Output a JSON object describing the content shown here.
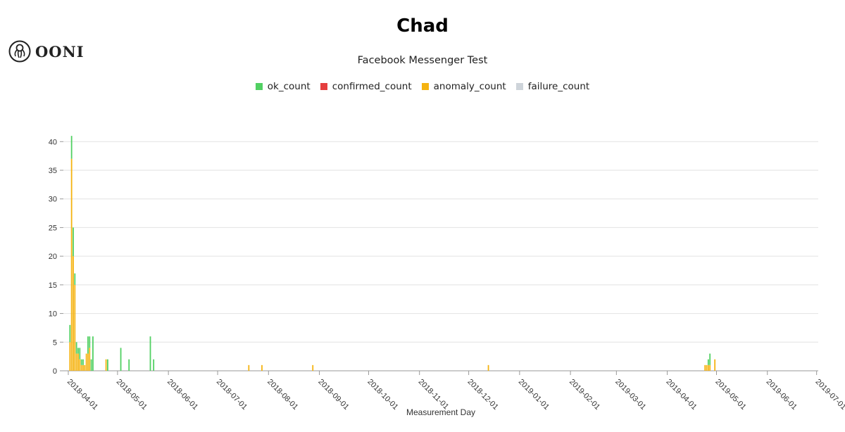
{
  "logo": {
    "text": "OONI",
    "icon": "octopus-icon"
  },
  "chart_data": {
    "type": "bar",
    "stacked": true,
    "title": "Chad",
    "subtitle": "Facebook Messenger Test",
    "xlabel": "Measurement Day",
    "ylabel": "",
    "ylim": [
      0,
      42
    ],
    "yticks": [
      0,
      5,
      10,
      15,
      20,
      25,
      30,
      35,
      40
    ],
    "xrange": [
      "2018-03-29",
      "2019-07-02"
    ],
    "xticks": [
      "2018-04-01",
      "2018-05-01",
      "2018-06-01",
      "2018-07-01",
      "2018-08-01",
      "2018-09-01",
      "2018-10-01",
      "2018-11-01",
      "2018-12-01",
      "2019-01-01",
      "2019-02-01",
      "2019-03-01",
      "2019-04-01",
      "2019-05-01",
      "2019-06-01",
      "2019-07-01"
    ],
    "grid": true,
    "legend_position": "top-center",
    "series": [
      {
        "name": "ok_count",
        "color": "#51d062"
      },
      {
        "name": "confirmed_count",
        "color": "#e53e3e"
      },
      {
        "name": "anomaly_count",
        "color": "#f5b311"
      },
      {
        "name": "failure_count",
        "color": "#ced4da"
      }
    ],
    "points": [
      {
        "date": "2018-04-02",
        "ok": 3,
        "anomaly": 5
      },
      {
        "date": "2018-04-03",
        "ok": 4,
        "anomaly": 37
      },
      {
        "date": "2018-04-04",
        "ok": 5,
        "anomaly": 20
      },
      {
        "date": "2018-04-05",
        "ok": 2,
        "anomaly": 15
      },
      {
        "date": "2018-04-06",
        "ok": 2,
        "anomaly": 3
      },
      {
        "date": "2018-04-07",
        "ok": 1,
        "anomaly": 3
      },
      {
        "date": "2018-04-08",
        "ok": 2,
        "anomaly": 2
      },
      {
        "date": "2018-04-09",
        "ok": 1,
        "anomaly": 1
      },
      {
        "date": "2018-04-10",
        "ok": 1,
        "anomaly": 1
      },
      {
        "date": "2018-04-11",
        "ok": 0,
        "anomaly": 1
      },
      {
        "date": "2018-04-12",
        "ok": 0,
        "anomaly": 3
      },
      {
        "date": "2018-04-13",
        "ok": 3,
        "anomaly": 3
      },
      {
        "date": "2018-04-14",
        "ok": 2,
        "anomaly": 4
      },
      {
        "date": "2018-04-15",
        "ok": 2,
        "anomaly": 0
      },
      {
        "date": "2018-04-16",
        "ok": 6,
        "anomaly": 0
      },
      {
        "date": "2018-04-24",
        "ok": 0,
        "anomaly": 2
      },
      {
        "date": "2018-04-25",
        "ok": 2,
        "anomaly": 0
      },
      {
        "date": "2018-05-03",
        "ok": 4,
        "anomaly": 0
      },
      {
        "date": "2018-05-08",
        "ok": 2,
        "anomaly": 0
      },
      {
        "date": "2018-05-21",
        "ok": 6,
        "anomaly": 0
      },
      {
        "date": "2018-05-23",
        "ok": 2,
        "anomaly": 0
      },
      {
        "date": "2018-07-20",
        "ok": 0,
        "anomaly": 1
      },
      {
        "date": "2018-07-28",
        "ok": 0,
        "anomaly": 1
      },
      {
        "date": "2018-08-28",
        "ok": 0,
        "anomaly": 1
      },
      {
        "date": "2018-12-13",
        "ok": 0,
        "anomaly": 1
      },
      {
        "date": "2019-04-24",
        "ok": 0,
        "anomaly": 1
      },
      {
        "date": "2019-04-25",
        "ok": 0,
        "anomaly": 1
      },
      {
        "date": "2019-04-26",
        "ok": 1,
        "anomaly": 1
      },
      {
        "date": "2019-04-27",
        "ok": 2,
        "anomaly": 1
      },
      {
        "date": "2019-04-30",
        "ok": 0,
        "anomaly": 2
      }
    ]
  }
}
